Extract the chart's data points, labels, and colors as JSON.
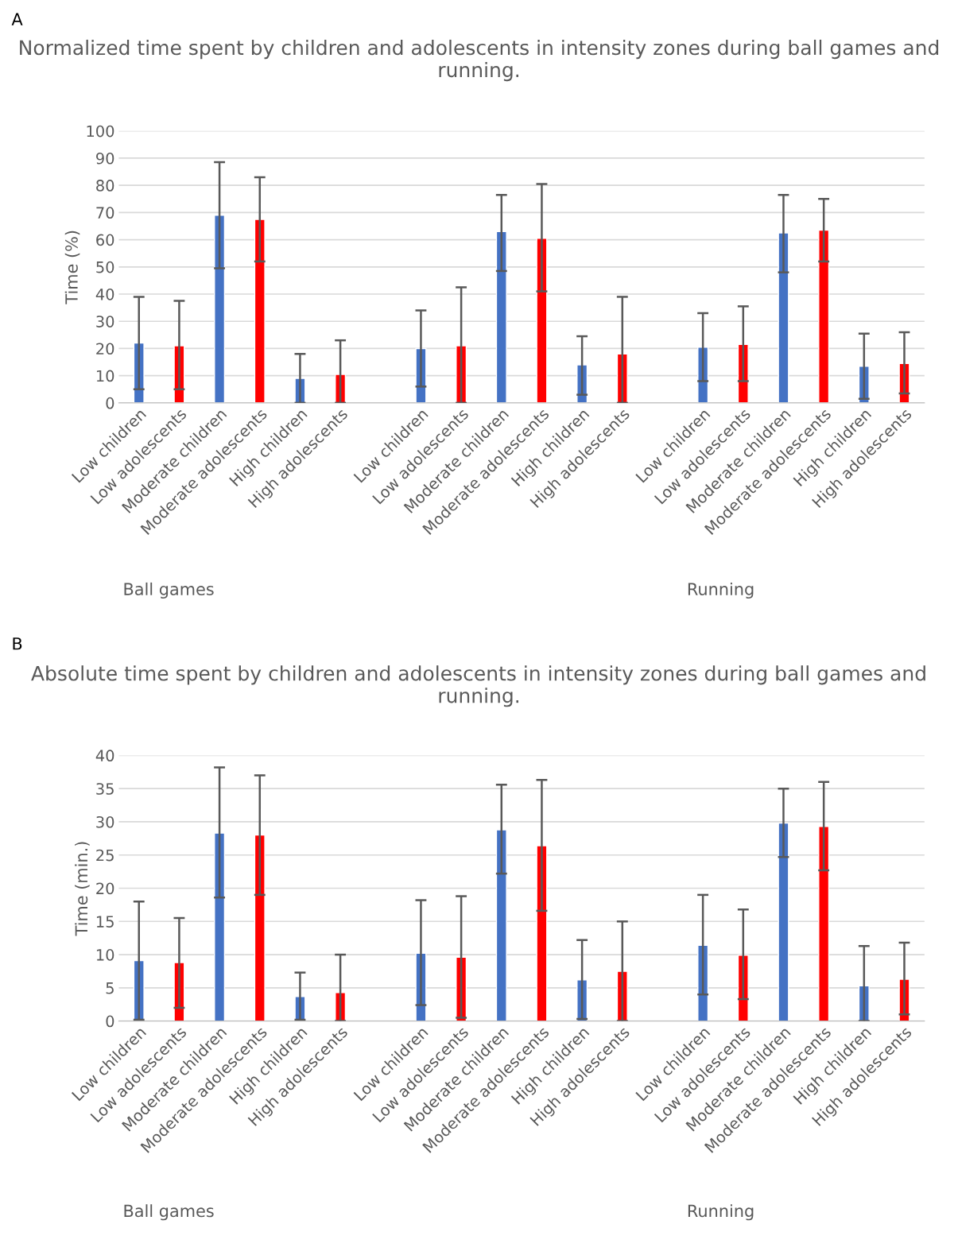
{
  "chart_data": [
    {
      "type": "bar",
      "subtitle": "A",
      "title": "Normalized time spent by children and adolescents in intensity zones during ball games and running.",
      "ylabel": "Time (%)",
      "categories": [
        "Low children",
        "Low adolescents",
        "Moderate children",
        "Moderate adolescents",
        "High children",
        "High adolescents",
        null,
        "Low children",
        "Low adolescents",
        "Moderate children",
        "Moderate adolescents",
        "High children",
        "High adolescents",
        null,
        "Low children",
        "Low adolescents",
        "Moderate children",
        "Moderate adolescents",
        "High children",
        "High adolescents"
      ],
      "values": [
        22,
        21,
        69,
        67.5,
        9,
        10.5,
        null,
        20,
        21,
        63,
        60.5,
        14,
        18,
        null,
        20.5,
        21.5,
        62.5,
        63.5,
        13.5,
        14.5
      ],
      "colors": [
        "#4472c4",
        "#ff0000",
        "#4472c4",
        "#ff0000",
        "#4472c4",
        "#ff0000",
        null,
        "#4472c4",
        "#ff0000",
        "#4472c4",
        "#ff0000",
        "#4472c4",
        "#ff0000",
        null,
        "#4472c4",
        "#ff0000",
        "#4472c4",
        "#ff0000",
        "#4472c4",
        "#ff0000"
      ],
      "errors": [
        [
          5,
          39
        ],
        [
          5,
          37.5
        ],
        [
          49.5,
          88.5
        ],
        [
          52,
          83
        ],
        [
          0,
          18
        ],
        [
          0,
          23
        ],
        null,
        [
          6,
          34
        ],
        [
          0,
          42.5
        ],
        [
          48.5,
          76.5
        ],
        [
          41,
          80.5
        ],
        [
          3,
          24.5
        ],
        [
          0,
          39
        ],
        null,
        [
          8,
          33
        ],
        [
          8,
          35.5
        ],
        [
          48,
          76.5
        ],
        [
          52,
          75
        ],
        [
          1.5,
          25.5
        ],
        [
          3.5,
          26
        ]
      ],
      "annotations": [
        "Ball games",
        null,
        "Running"
      ],
      "ylim": [
        0,
        100
      ],
      "yticks": [
        0,
        10,
        20,
        30,
        40,
        50,
        60,
        70,
        80,
        90,
        100
      ],
      "grid": "y",
      "legend": false
    },
    {
      "type": "bar",
      "subtitle": "B",
      "title": "Absolute time spent by children and adolescents in intensity zones during ball games and running.",
      "ylabel": "Time (min.)",
      "categories": [
        "Low children",
        "Low adolescents",
        "Moderate children",
        "Moderate adolescents",
        "High children",
        "High adolescents",
        null,
        "Low children",
        "Low adolescents",
        "Moderate children",
        "Moderate adolescents",
        "High children",
        "High adolescents",
        null,
        "Low children",
        "Low adolescents",
        "Moderate children",
        "Moderate adolescents",
        "High children",
        "High adolescents"
      ],
      "values": [
        9.1,
        8.8,
        28.3,
        28,
        3.7,
        4.3,
        null,
        10.2,
        9.6,
        28.8,
        26.4,
        6.2,
        7.5,
        null,
        11.4,
        9.9,
        29.8,
        29.3,
        5.3,
        6.3
      ],
      "colors": [
        "#4472c4",
        "#ff0000",
        "#4472c4",
        "#ff0000",
        "#4472c4",
        "#ff0000",
        null,
        "#4472c4",
        "#ff0000",
        "#4472c4",
        "#ff0000",
        "#4472c4",
        "#ff0000",
        null,
        "#4472c4",
        "#ff0000",
        "#4472c4",
        "#ff0000",
        "#4472c4",
        "#ff0000"
      ],
      "errors": [
        [
          0.2,
          18
        ],
        [
          2,
          15.5
        ],
        [
          18.6,
          38.2
        ],
        [
          19,
          37
        ],
        [
          0.2,
          7.3
        ],
        [
          0,
          10
        ],
        null,
        [
          2.4,
          18.2
        ],
        [
          0.5,
          18.8
        ],
        [
          22.2,
          35.6
        ],
        [
          16.6,
          36.3
        ],
        [
          0.3,
          12.2
        ],
        [
          0,
          15
        ],
        null,
        [
          4,
          19
        ],
        [
          3.3,
          16.8
        ],
        [
          24.7,
          35
        ],
        [
          22.7,
          36
        ],
        [
          0,
          11.3
        ],
        [
          1,
          11.8
        ]
      ],
      "annotations": [
        "Ball games",
        null,
        "Running"
      ],
      "ylim": [
        0,
        40
      ],
      "yticks": [
        0,
        5,
        10,
        15,
        20,
        25,
        30,
        35,
        40
      ],
      "grid": "y",
      "legend": false
    }
  ]
}
